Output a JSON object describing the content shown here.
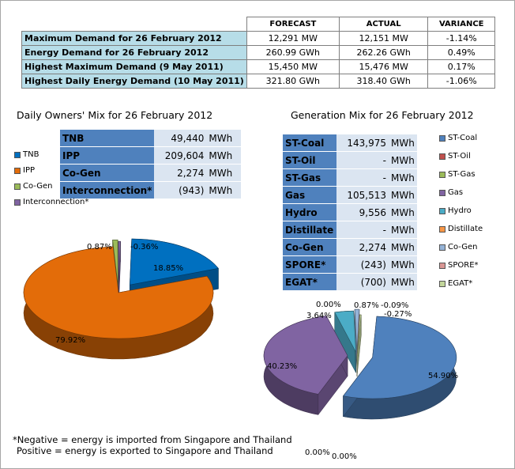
{
  "summary": {
    "headers": [
      "FORECAST",
      "ACTUAL",
      "VARIANCE"
    ],
    "rows": [
      {
        "label": "Maximum Demand for 26 February 2012",
        "forecast": "12,291  MW",
        "actual": "12,151  MW",
        "variance": "-1.14%"
      },
      {
        "label": "Energy Demand for 26 February 2012",
        "forecast": "260.99  GWh",
        "actual": "262.26  GWh",
        "variance": "0.49%"
      },
      {
        "label": "Highest Maximum Demand (9 May 2011)",
        "forecast": "15,450  MW",
        "actual": "15,476  MW",
        "variance": "0.17%"
      },
      {
        "label": "Highest Daily Energy Demand (10 May 2011)",
        "forecast": "321.80  GWh",
        "actual": "318.40  GWh",
        "variance": "-1.06%"
      }
    ]
  },
  "owners": {
    "title": "Daily Owners' Mix for 26 February 2012",
    "rows": [
      {
        "name": "TNB",
        "value": "49,440",
        "unit": "MWh"
      },
      {
        "name": "IPP",
        "value": "209,604",
        "unit": "MWh"
      },
      {
        "name": "Co-Gen",
        "value": "2,274",
        "unit": "MWh"
      },
      {
        "name": "Interconnection*",
        "value": "(943)",
        "unit": "MWh"
      }
    ],
    "legend": [
      "TNB",
      "IPP",
      "Co-Gen",
      "Interconnection*"
    ]
  },
  "generation": {
    "title": "Generation Mix for 26 February 2012",
    "rows": [
      {
        "name": "ST-Coal",
        "value": "143,975",
        "unit": "MWh"
      },
      {
        "name": "ST-Oil",
        "value": "-",
        "unit": "MWh"
      },
      {
        "name": "ST-Gas",
        "value": "-",
        "unit": "MWh"
      },
      {
        "name": "Gas",
        "value": "105,513",
        "unit": "MWh"
      },
      {
        "name": "Hydro",
        "value": "9,556",
        "unit": "MWh"
      },
      {
        "name": "Distillate",
        "value": "-",
        "unit": "MWh"
      },
      {
        "name": "Co-Gen",
        "value": "2,274",
        "unit": "MWh"
      },
      {
        "name": "SPORE*",
        "value": "(243)",
        "unit": "MWh"
      },
      {
        "name": "EGAT*",
        "value": "(700)",
        "unit": "MWh"
      }
    ],
    "legend": [
      "ST-Coal",
      "ST-Oil",
      "ST-Gas",
      "Gas",
      "Hydro",
      "Distillate",
      "Co-Gen",
      "SPORE*",
      "EGAT*"
    ]
  },
  "note": {
    "line1": "*Negative = energy is imported from Singapore and Thailand",
    "line2": "Positive = energy is exported to Singapore and Thailand"
  },
  "chart_data": [
    {
      "type": "pie",
      "title": "Daily Owners' Mix for 26 February 2012",
      "categories": [
        "TNB",
        "IPP",
        "Co-Gen",
        "Interconnection*"
      ],
      "values": [
        18.85,
        79.92,
        0.87,
        -0.36
      ],
      "labels": [
        "18.85%",
        "79.92%",
        "0.87%",
        "-0.36%"
      ],
      "colors": [
        "#0070c0",
        "#e36c09",
        "#9bbb59",
        "#8064a2"
      ],
      "legend_position": "top-left"
    },
    {
      "type": "pie",
      "title": "Generation Mix for 26 February 2012",
      "categories": [
        "ST-Coal",
        "ST-Oil",
        "ST-Gas",
        "Gas",
        "Hydro",
        "Distillate",
        "Co-Gen",
        "SPORE*",
        "EGAT*"
      ],
      "values": [
        54.9,
        0.0,
        0.0,
        40.23,
        3.64,
        0.0,
        0.87,
        -0.09,
        -0.27
      ],
      "labels": [
        "54.90%",
        "0.00%",
        "0.00%",
        "40.23%",
        "3.64%",
        "0.00%",
        "0.87%",
        "-0.09%",
        "-0.27%"
      ],
      "colors": [
        "#4f81bd",
        "#c0504d",
        "#9bbb59",
        "#8064a2",
        "#4bacc6",
        "#f79646",
        "#95b3d7",
        "#d99694",
        "#c3d69b"
      ],
      "legend_position": "right"
    }
  ]
}
